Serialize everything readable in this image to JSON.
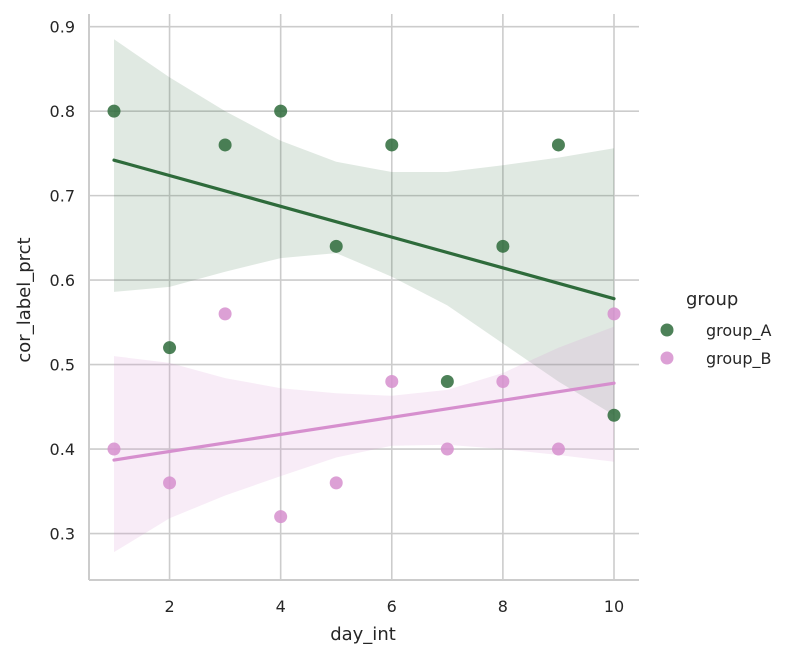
{
  "chart_data": {
    "type": "scatter",
    "title": "",
    "xlabel": "day_int",
    "ylabel": "cor_label_prct",
    "xlim": [
      0.55,
      10.45
    ],
    "ylim": [
      0.245,
      0.915
    ],
    "x_ticks": [
      2,
      4,
      6,
      8,
      10
    ],
    "x_tick_labels": [
      "2",
      "4",
      "6",
      "8",
      "10"
    ],
    "y_ticks": [
      0.3,
      0.4,
      0.5,
      0.6,
      0.7,
      0.8,
      0.9
    ],
    "y_tick_labels": [
      "0.3",
      "0.4",
      "0.5",
      "0.6",
      "0.7",
      "0.8",
      "0.9"
    ],
    "grid": true,
    "legend": {
      "title": "group",
      "placement": "right"
    },
    "series": [
      {
        "name": "group_A",
        "color": "#2e6b3b",
        "x": [
          1,
          2,
          3,
          4,
          5,
          6,
          7,
          8,
          9,
          10
        ],
        "y": [
          0.8,
          0.52,
          0.76,
          0.8,
          0.64,
          0.76,
          0.48,
          0.64,
          0.76,
          0.44
        ],
        "regression": {
          "x": [
            1,
            10
          ],
          "y": [
            0.742,
            0.578
          ]
        },
        "ci_upper": [
          [
            1,
            0.885
          ],
          [
            2,
            0.84
          ],
          [
            3,
            0.8
          ],
          [
            4,
            0.765
          ],
          [
            5,
            0.74
          ],
          [
            6,
            0.728
          ],
          [
            7,
            0.728
          ],
          [
            8,
            0.736
          ],
          [
            9,
            0.745
          ],
          [
            10,
            0.756
          ]
        ],
        "ci_lower": [
          [
            1,
            0.586
          ],
          [
            2,
            0.592
          ],
          [
            3,
            0.61
          ],
          [
            4,
            0.626
          ],
          [
            5,
            0.632
          ],
          [
            6,
            0.604
          ],
          [
            7,
            0.57
          ],
          [
            8,
            0.525
          ],
          [
            9,
            0.48
          ],
          [
            10,
            0.44
          ]
        ]
      },
      {
        "name": "group_B",
        "color": "#d68fce",
        "x": [
          1,
          2,
          3,
          4,
          5,
          6,
          7,
          8,
          9,
          10
        ],
        "y": [
          0.4,
          0.36,
          0.56,
          0.32,
          0.36,
          0.48,
          0.4,
          0.48,
          0.4,
          0.56
        ],
        "regression": {
          "x": [
            1,
            10
          ],
          "y": [
            0.387,
            0.478
          ]
        },
        "ci_upper": [
          [
            1,
            0.51
          ],
          [
            2,
            0.502
          ],
          [
            3,
            0.484
          ],
          [
            4,
            0.472
          ],
          [
            5,
            0.466
          ],
          [
            6,
            0.463
          ],
          [
            7,
            0.47
          ],
          [
            8,
            0.49
          ],
          [
            9,
            0.52
          ],
          [
            10,
            0.545
          ]
        ],
        "ci_lower": [
          [
            1,
            0.278
          ],
          [
            2,
            0.318
          ],
          [
            3,
            0.345
          ],
          [
            4,
            0.368
          ],
          [
            5,
            0.39
          ],
          [
            6,
            0.404
          ],
          [
            7,
            0.405
          ],
          [
            8,
            0.4
          ],
          [
            9,
            0.393
          ],
          [
            10,
            0.385
          ]
        ]
      }
    ]
  }
}
